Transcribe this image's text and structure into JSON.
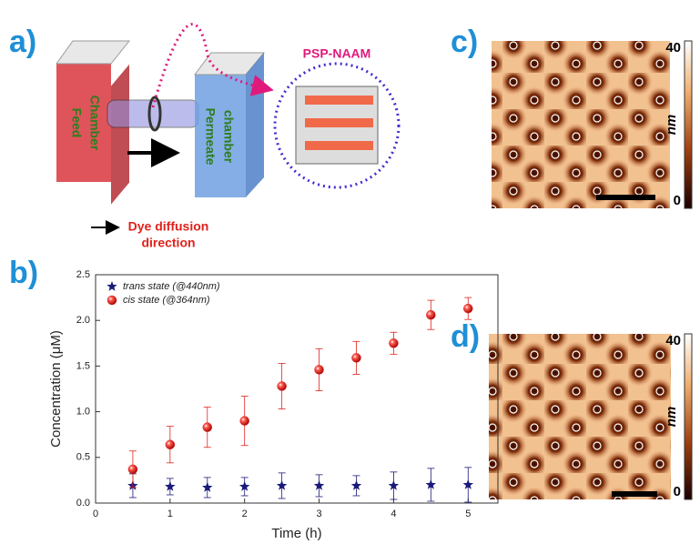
{
  "panels": {
    "a": {
      "label": "a)",
      "membrane": "PSP-NAAM",
      "feed": [
        "Feed",
        "Chamber"
      ],
      "permeate": [
        "Permeate",
        "chamber"
      ],
      "direction": [
        "Dye diffusion",
        "direction"
      ]
    },
    "c": {
      "label": "c)",
      "colorbar_ticks": [
        40,
        0
      ],
      "unit": "nm"
    },
    "d": {
      "label": "d)",
      "colorbar_ticks": [
        40,
        0
      ],
      "unit": "nm"
    }
  },
  "chart_label": "b)",
  "chart_data": {
    "type": "scatter",
    "x_label": "Time (h)",
    "y_label": "Concentration (μM)",
    "x": [
      0.5,
      1,
      1.5,
      2,
      2.5,
      3,
      3.5,
      4,
      4.5,
      5
    ],
    "series": [
      {
        "name": "trans state (@440nm)",
        "color": "#1a1a7a",
        "marker": "star",
        "values": [
          0.19,
          0.18,
          0.17,
          0.18,
          0.19,
          0.19,
          0.19,
          0.19,
          0.2,
          0.2
        ],
        "errors": [
          0.13,
          0.09,
          0.11,
          0.1,
          0.14,
          0.12,
          0.11,
          0.15,
          0.18,
          0.19
        ]
      },
      {
        "name": "cis state (@364nm)",
        "color": "#e0221c",
        "marker": "sphere",
        "values": [
          0.37,
          0.64,
          0.83,
          0.9,
          1.28,
          1.46,
          1.59,
          1.75,
          2.06,
          2.13
        ],
        "errors": [
          0.2,
          0.2,
          0.22,
          0.27,
          0.25,
          0.23,
          0.18,
          0.12,
          0.16,
          0.12
        ]
      }
    ],
    "xlim": [
      0,
      5.4
    ],
    "ylim": [
      0,
      2.5
    ],
    "xticks": [
      0,
      1,
      2,
      3,
      4,
      5
    ],
    "yticks": [
      {
        "value": 0,
        "label": "0.0"
      },
      {
        "value": 0.5,
        "label": "0.5"
      },
      {
        "value": 1,
        "label": "1.0"
      },
      {
        "value": 1.5,
        "label": "1.5"
      },
      {
        "value": 2,
        "label": "2.0"
      },
      {
        "value": 2.5,
        "label": "2.5"
      }
    ],
    "legend": "upper left"
  }
}
